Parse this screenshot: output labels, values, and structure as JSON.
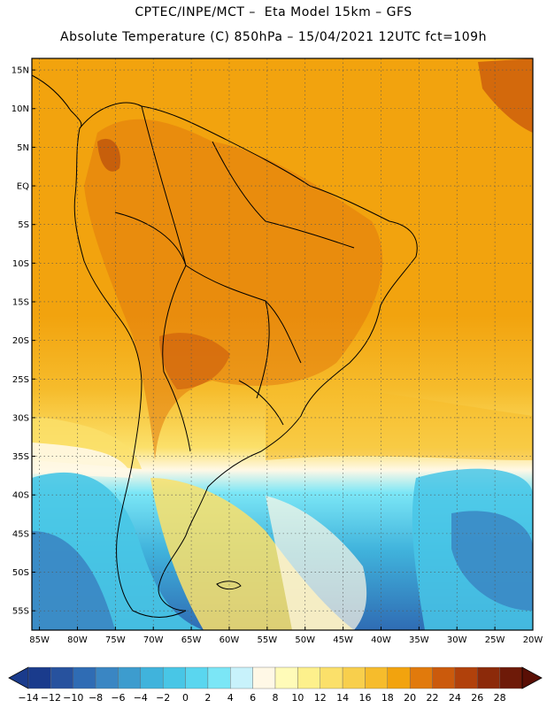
{
  "header": {
    "line1": "CPTEC/INPE/MCT –  Eta Model 15km – GFS",
    "line2": "Absolute Temperature (C) 850hPa – 15/04/2021 12UTC fct=109h"
  },
  "map": {
    "lat_labels": [
      "15N",
      "10N",
      "5N",
      "EQ",
      "5S",
      "10S",
      "15S",
      "20S",
      "25S",
      "30S",
      "35S",
      "40S",
      "45S",
      "50S",
      "55S"
    ],
    "lon_labels": [
      "85W",
      "80W",
      "75W",
      "70W",
      "65W",
      "60W",
      "55W",
      "50W",
      "45W",
      "40W",
      "35W",
      "30W",
      "25W",
      "20W"
    ],
    "lat_range": [
      -57.5,
      16.5
    ],
    "lon_range": [
      -86,
      -20
    ],
    "gridlines": "dotted"
  },
  "colorbar": {
    "labels": [
      "-14",
      "-12",
      "-10",
      "-8",
      "-6",
      "-4",
      "-2",
      "0",
      "2",
      "4",
      "6",
      "8",
      "10",
      "12",
      "14",
      "16",
      "18",
      "20",
      "22",
      "24",
      "26",
      "28"
    ],
    "colors": [
      "#1a3b8c",
      "#27529e",
      "#2f6cb4",
      "#3a86c3",
      "#3d9cce",
      "#40b3dc",
      "#48c6e6",
      "#5ad6ef",
      "#7be6f6",
      "#c8f2fb",
      "#fff8e6",
      "#fffbb8",
      "#fdf08c",
      "#fbe06a",
      "#f8cf4c",
      "#f6bc2c",
      "#f2a30e",
      "#e17a0c",
      "#cb5a0c",
      "#b1410b",
      "#8c2a0a",
      "#6e1a08"
    ]
  }
}
